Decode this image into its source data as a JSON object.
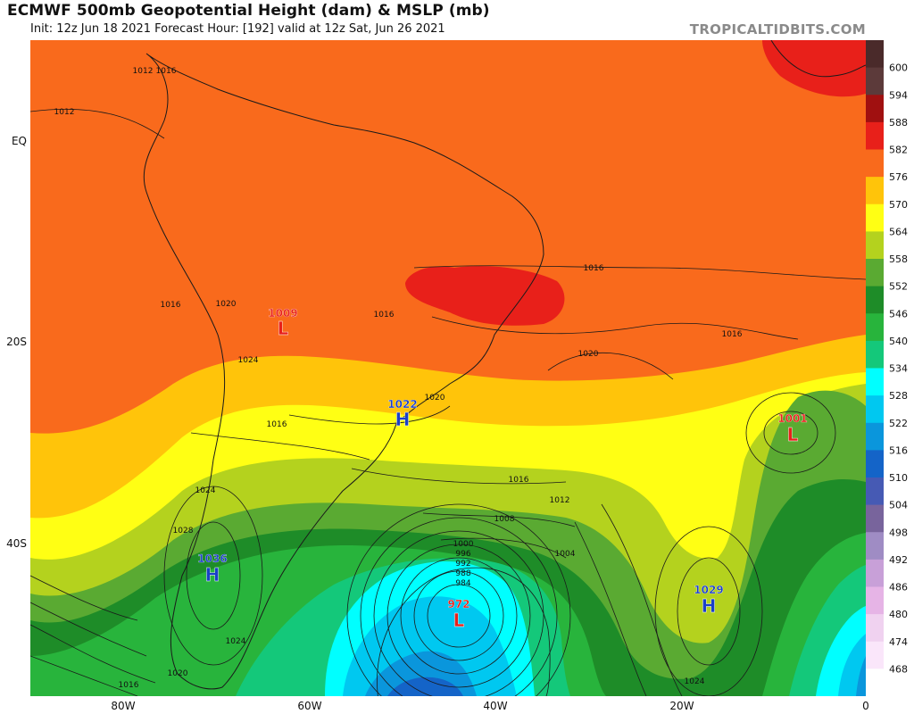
{
  "header": {
    "title": "ECMWF 500mb Geopotential Height (dam) & MSLP (mb)",
    "subtitle": "Init: 12z Jun 18 2021   Forecast Hour: [192]   valid at 12z Sat, Jun 26 2021",
    "credit": "TROPICALTIDBITS.COM"
  },
  "axes": {
    "lat_labels": [
      "EQ",
      "20S",
      "40S"
    ],
    "lon_labels": [
      "80W",
      "60W",
      "40W",
      "20W",
      "0"
    ]
  },
  "colorbar": {
    "levels": [
      "600",
      "594",
      "588",
      "582",
      "576",
      "570",
      "564",
      "558",
      "552",
      "546",
      "540",
      "534",
      "528",
      "522",
      "516",
      "510",
      "504",
      "498",
      "492",
      "486",
      "480",
      "474",
      "468"
    ],
    "colors": [
      "#4a2a2a",
      "#5c3a3a",
      "#a01010",
      "#e8201a",
      "#f96a1c",
      "#ffc40a",
      "#ffff14",
      "#b4d21e",
      "#5aaa32",
      "#1e8c28",
      "#28b43c",
      "#14c87a",
      "#00ffff",
      "#00c8f0",
      "#0a96dc",
      "#1464c8",
      "#465ab4",
      "#78649c",
      "#9f8cc4",
      "#c8a0d8",
      "#e6b4e6",
      "#f0d2f0",
      "#fae6fa",
      "#ffffff"
    ]
  },
  "pressure_centers": [
    {
      "type": "L",
      "value": "1009",
      "color": "#e8201a"
    },
    {
      "type": "H",
      "value": "1022",
      "color": "#1a3fc8"
    },
    {
      "type": "L",
      "value": "1001",
      "color": "#e8201a"
    },
    {
      "type": "H",
      "value": "1036",
      "color": "#1a3fc8"
    },
    {
      "type": "L",
      "value": "972",
      "color": "#e8201a"
    },
    {
      "type": "H",
      "value": "1029",
      "color": "#1a3fc8"
    }
  ],
  "isobar_labels": [
    "1012",
    "1016",
    "1012",
    "1016",
    "1016",
    "1016",
    "1020",
    "1016",
    "1020",
    "1020",
    "1016",
    "1024",
    "1024",
    "1016",
    "1012",
    "1008",
    "1004",
    "1000",
    "996",
    "992",
    "988",
    "984",
    "1028",
    "1024",
    "1020",
    "1016",
    "1024"
  ]
}
